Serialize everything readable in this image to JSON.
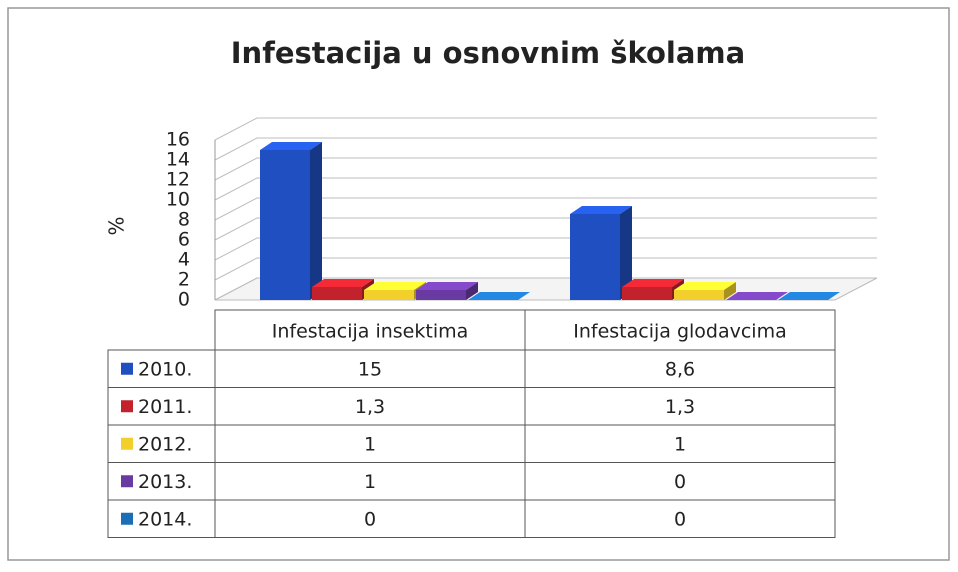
{
  "chart_data": {
    "type": "bar",
    "title": "Infestacija u osnovnim školama",
    "y_label": "%",
    "categories": [
      "Infestacija insektima",
      "Infestacija glodavcima"
    ],
    "series": [
      {
        "name": "2010.",
        "color": "#1f4fc0",
        "values": [
          15,
          8.6
        ],
        "value_labels": [
          "15",
          "8,6"
        ]
      },
      {
        "name": "2011.",
        "color": "#c3222c",
        "values": [
          1.3,
          1.3
        ],
        "value_labels": [
          "1,3",
          "1,3"
        ]
      },
      {
        "name": "2012.",
        "color": "#f2cf2a",
        "values": [
          1,
          1
        ],
        "value_labels": [
          "1",
          "1"
        ]
      },
      {
        "name": "2013.",
        "color": "#6a3aa3",
        "values": [
          1,
          0
        ],
        "value_labels": [
          "1",
          "0"
        ]
      },
      {
        "name": "2014.",
        "color": "#1b6db6",
        "values": [
          0,
          0
        ],
        "value_labels": [
          "0",
          "0"
        ]
      }
    ],
    "ylim": [
      0,
      16
    ],
    "yticks": [
      0,
      2,
      4,
      6,
      8,
      10,
      12,
      14,
      16
    ],
    "grid": true
  }
}
